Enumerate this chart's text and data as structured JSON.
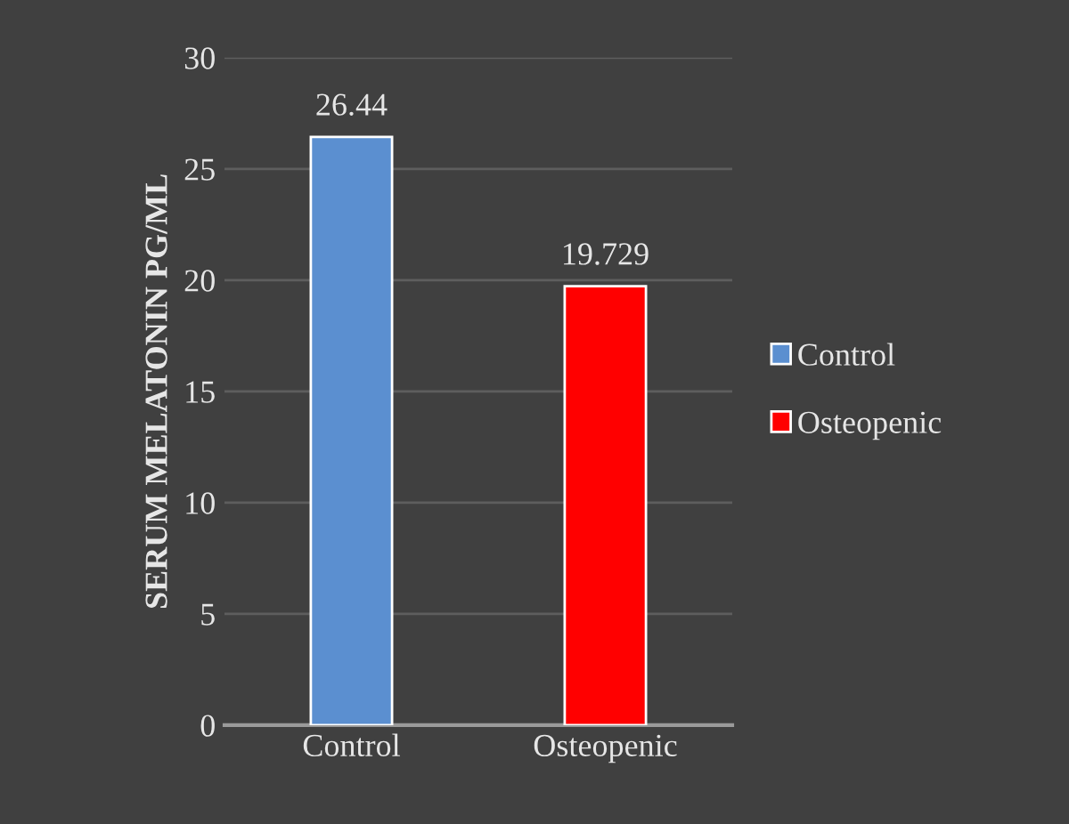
{
  "chart_data": {
    "type": "bar",
    "ylabel": "SERUM MELATONIN PG/ML",
    "categories": [
      "Control",
      "Osteopenic"
    ],
    "series": [
      {
        "name": "Control",
        "color": "#5b8fd0",
        "values": [
          26.44,
          null
        ]
      },
      {
        "name": "Osteopenic",
        "color": "#ff0000",
        "values": [
          null,
          19.729
        ]
      }
    ],
    "ylim": [
      0,
      30
    ],
    "yticks": [
      0,
      5,
      10,
      15,
      20,
      25,
      30
    ],
    "grid": "y",
    "legend": "right",
    "data_labels": true
  }
}
